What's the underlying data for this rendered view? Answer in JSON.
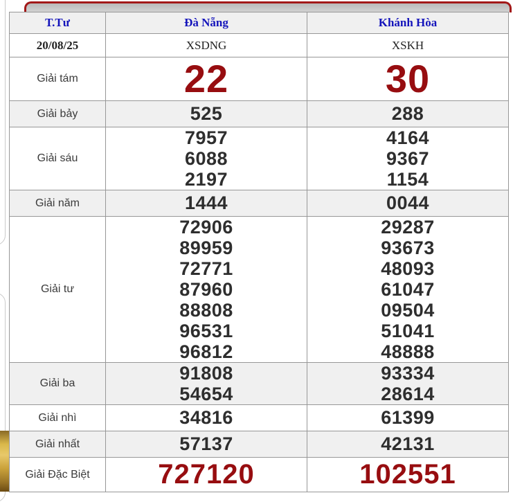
{
  "colors": {
    "accent_red": "#970d10",
    "header_blue": "#1414bb",
    "row_gray": "#f0f0f0",
    "border_gray": "#979797",
    "tab_border_red": "#a21818",
    "gold_strip": "#d9b84a"
  },
  "header": {
    "weekday": "T.Tư",
    "provinces": [
      "Đà Nẵng",
      "Khánh Hòa"
    ]
  },
  "date_row": {
    "date": "20/08/25",
    "codes": [
      "XSDNG",
      "XSKH"
    ]
  },
  "table": {
    "rows": [
      {
        "label": "Giải tám",
        "kind": "huge",
        "bg": "white",
        "values": [
          [
            "22"
          ],
          [
            "30"
          ]
        ]
      },
      {
        "label": "Giải bảy",
        "kind": "single",
        "bg": "gray",
        "values": [
          [
            "525"
          ],
          [
            "288"
          ]
        ]
      },
      {
        "label": "Giải sáu",
        "kind": "multi",
        "bg": "white",
        "values": [
          [
            "7957",
            "6088",
            "2197"
          ],
          [
            "4164",
            "9367",
            "1154"
          ]
        ]
      },
      {
        "label": "Giải năm",
        "kind": "single",
        "bg": "gray",
        "values": [
          [
            "1444"
          ],
          [
            "0044"
          ]
        ]
      },
      {
        "label": "Giải tư",
        "kind": "multi",
        "bg": "white",
        "values": [
          [
            "72906",
            "89959",
            "72771",
            "87960",
            "88808",
            "96531",
            "96812"
          ],
          [
            "29287",
            "93673",
            "48093",
            "61047",
            "09504",
            "51041",
            "48888"
          ]
        ]
      },
      {
        "label": "Giải ba",
        "kind": "multi",
        "bg": "gray",
        "values": [
          [
            "91808",
            "54654"
          ],
          [
            "93334",
            "28614"
          ]
        ]
      },
      {
        "label": "Giải nhì",
        "kind": "single",
        "bg": "white",
        "values": [
          [
            "34816"
          ],
          [
            "61399"
          ]
        ]
      },
      {
        "label": "Giải nhất",
        "kind": "single",
        "bg": "gray",
        "values": [
          [
            "57137"
          ],
          [
            "42131"
          ]
        ]
      },
      {
        "label": "Giải Đặc Biệt",
        "kind": "special",
        "bg": "white",
        "values": [
          [
            "727120"
          ],
          [
            "102551"
          ]
        ]
      }
    ]
  }
}
